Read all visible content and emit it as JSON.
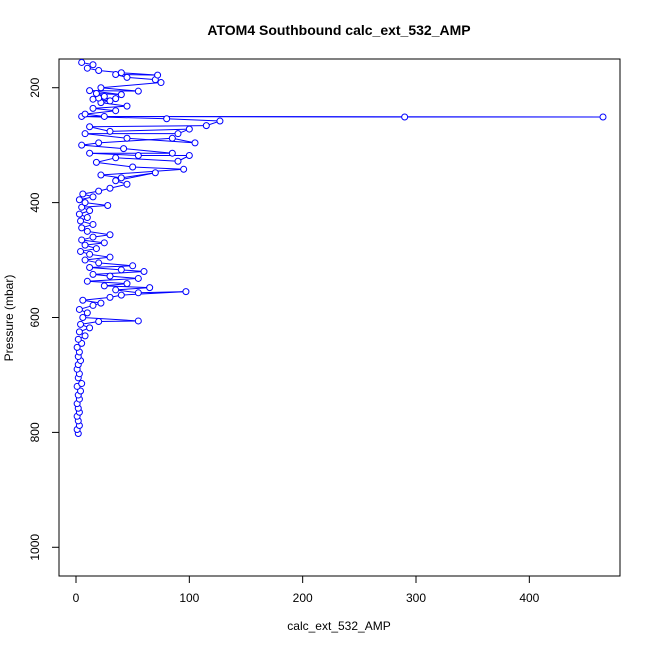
{
  "chart_data": {
    "type": "scatter",
    "title": "ATOM4 Southbound calc_ext_532_AMP",
    "xlabel": "calc_ext_532_AMP",
    "ylabel": "Pressure (mbar)",
    "xlim": [
      -15,
      480
    ],
    "ylim": [
      1050,
      150
    ],
    "y_reversed": true,
    "x_ticks": [
      "0",
      "100",
      "200",
      "300",
      "400"
    ],
    "y_ticks": [
      "200",
      "400",
      "600",
      "800",
      "1000"
    ],
    "grid": false,
    "legend": "none",
    "series_color": "#0000ff",
    "marker": "open-circle",
    "connected": true,
    "series": [
      {
        "points": [
          [
            2,
            802
          ],
          [
            1,
            795
          ],
          [
            3,
            788
          ],
          [
            2,
            780
          ],
          [
            1,
            772
          ],
          [
            3,
            765
          ],
          [
            2,
            758
          ],
          [
            1,
            750
          ],
          [
            3,
            742
          ],
          [
            2,
            735
          ],
          [
            4,
            728
          ],
          [
            1,
            720
          ],
          [
            5,
            715
          ],
          [
            2,
            705
          ],
          [
            3,
            698
          ],
          [
            1,
            690
          ],
          [
            2,
            682
          ],
          [
            4,
            675
          ],
          [
            2,
            668
          ],
          [
            3,
            660
          ],
          [
            1,
            652
          ],
          [
            5,
            645
          ],
          [
            2,
            638
          ],
          [
            8,
            632
          ],
          [
            3,
            625
          ],
          [
            12,
            618
          ],
          [
            4,
            612
          ],
          [
            20,
            607
          ],
          [
            55,
            606
          ],
          [
            6,
            600
          ],
          [
            10,
            592
          ],
          [
            3,
            586
          ],
          [
            15,
            579
          ],
          [
            22,
            575
          ],
          [
            6,
            570
          ],
          [
            30,
            565
          ],
          [
            40,
            561
          ],
          [
            97,
            555
          ],
          [
            55,
            557
          ],
          [
            35,
            552
          ],
          [
            65,
            548
          ],
          [
            25,
            545
          ],
          [
            45,
            541
          ],
          [
            10,
            537
          ],
          [
            55,
            532
          ],
          [
            30,
            528
          ],
          [
            15,
            525
          ],
          [
            60,
            520
          ],
          [
            40,
            517
          ],
          [
            12,
            513
          ],
          [
            50,
            510
          ],
          [
            20,
            505
          ],
          [
            8,
            500
          ],
          [
            30,
            495
          ],
          [
            12,
            490
          ],
          [
            4,
            485
          ],
          [
            18,
            480
          ],
          [
            8,
            474
          ],
          [
            25,
            470
          ],
          [
            5,
            465
          ],
          [
            15,
            460
          ],
          [
            30,
            456
          ],
          [
            10,
            450
          ],
          [
            5,
            444
          ],
          [
            15,
            438
          ],
          [
            4,
            432
          ],
          [
            10,
            426
          ],
          [
            3,
            420
          ],
          [
            12,
            414
          ],
          [
            5,
            408
          ],
          [
            28,
            405
          ],
          [
            8,
            400
          ],
          [
            3,
            395
          ],
          [
            15,
            390
          ],
          [
            6,
            385
          ],
          [
            20,
            380
          ],
          [
            30,
            375
          ],
          [
            45,
            368
          ],
          [
            35,
            362
          ],
          [
            70,
            348
          ],
          [
            40,
            357
          ],
          [
            22,
            352
          ],
          [
            95,
            342
          ],
          [
            50,
            338
          ],
          [
            18,
            330
          ],
          [
            35,
            322
          ],
          [
            90,
            328
          ],
          [
            100,
            318
          ],
          [
            55,
            318
          ],
          [
            12,
            314
          ],
          [
            85,
            314
          ],
          [
            42,
            306
          ],
          [
            5,
            300
          ],
          [
            20,
            296
          ],
          [
            85,
            288
          ],
          [
            105,
            296
          ],
          [
            45,
            288
          ],
          [
            8,
            280
          ],
          [
            90,
            280
          ],
          [
            100,
            272
          ],
          [
            30,
            276
          ],
          [
            12,
            268
          ],
          [
            115,
            266
          ],
          [
            127,
            258
          ],
          [
            80,
            254
          ],
          [
            5,
            250
          ],
          [
            290,
            251
          ],
          [
            465,
            251
          ],
          [
            25,
            250
          ],
          [
            8,
            246
          ],
          [
            35,
            240
          ],
          [
            15,
            236
          ],
          [
            45,
            232
          ],
          [
            22,
            226
          ],
          [
            30,
            223
          ],
          [
            15,
            220
          ],
          [
            35,
            219
          ],
          [
            20,
            218
          ],
          [
            25,
            215
          ],
          [
            18,
            210
          ],
          [
            40,
            212
          ],
          [
            12,
            205
          ],
          [
            55,
            206
          ],
          [
            22,
            200
          ],
          [
            75,
            191
          ],
          [
            70,
            186
          ],
          [
            45,
            182
          ],
          [
            35,
            177
          ],
          [
            72,
            178
          ],
          [
            40,
            174
          ],
          [
            20,
            170
          ],
          [
            10,
            166
          ],
          [
            15,
            160
          ],
          [
            5,
            156
          ]
        ]
      }
    ]
  }
}
